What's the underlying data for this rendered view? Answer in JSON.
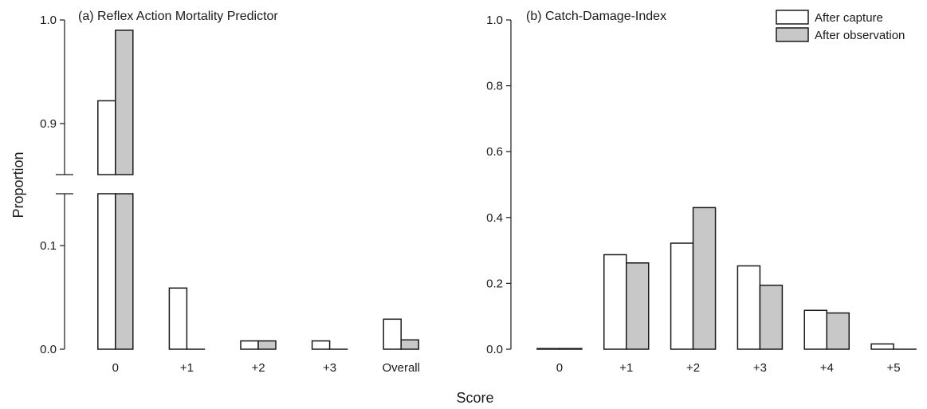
{
  "chart_data": [
    {
      "type": "bar",
      "title": "(a) Reflex Action Mortality Predictor",
      "ylabel": "Proportion",
      "categories": [
        "0",
        "+1",
        "+2",
        "+3",
        "Overall"
      ],
      "series": [
        {
          "name": "After capture",
          "values": [
            0.922,
            0.059,
            0.008,
            0.008,
            0.029
          ],
          "color": "#ffffff"
        },
        {
          "name": "After observation",
          "values": [
            0.99,
            0.0,
            0.008,
            0.0,
            0.009
          ],
          "color": "#c8c8c8"
        }
      ],
      "axis_break": {
        "lower": [
          0,
          0.15
        ],
        "upper": [
          0.86,
          1.0
        ]
      },
      "yticks_lower": [
        "0.0",
        "0.1"
      ],
      "yticks_upper": [
        "0.9",
        "1.0"
      ],
      "grid": false
    },
    {
      "type": "bar",
      "title": "(b) Catch-Damage-Index",
      "categories": [
        "0",
        "+1",
        "+2",
        "+3",
        "+4",
        "+5"
      ],
      "series": [
        {
          "name": "After capture",
          "values": [
            0.002,
            0.287,
            0.322,
            0.253,
            0.118,
            0.016
          ],
          "color": "#ffffff"
        },
        {
          "name": "After observation",
          "values": [
            0.002,
            0.262,
            0.43,
            0.194,
            0.11,
            0.0
          ],
          "color": "#c8c8c8"
        }
      ],
      "ylim": [
        0,
        1.0
      ],
      "yticks": [
        "0.0",
        "0.2",
        "0.4",
        "0.6",
        "0.8",
        "1.0"
      ],
      "legend": "top-right",
      "grid": false
    }
  ],
  "shared_xlabel": "Score"
}
